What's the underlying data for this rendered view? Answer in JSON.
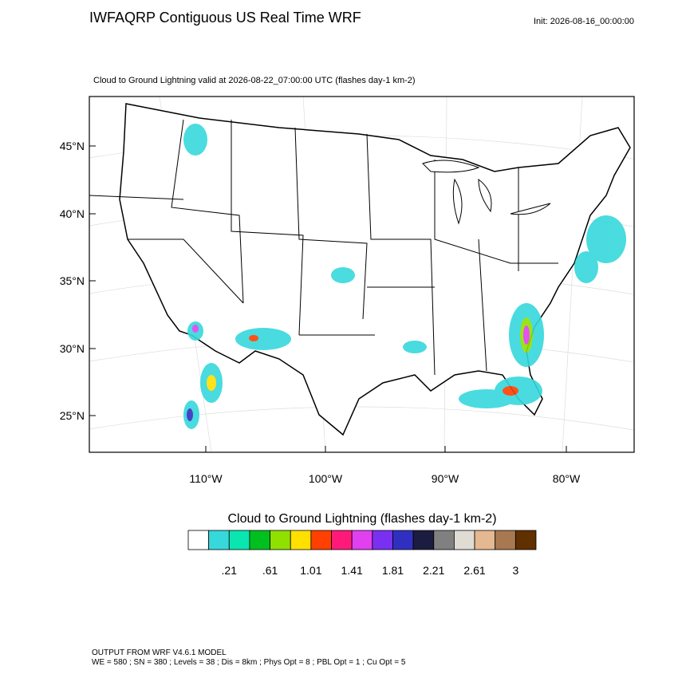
{
  "header": {
    "title": "IWFAQRP Contiguous US Real Time WRF",
    "init": "Init: 2026-08-16_00:00:00"
  },
  "map": {
    "subtitle": "Cloud to Ground Lightning valid at 2026-08-22_07:00:00 UTC   (flashes day-1 km-2)",
    "lat_labels": [
      "45°N",
      "40°N",
      "35°N",
      "30°N",
      "25°N"
    ],
    "lon_labels": [
      "110°W",
      "100°W",
      "90°W",
      "80°W"
    ]
  },
  "colorbar": {
    "title": "Cloud to Ground Lightning  (flashes day-1 km-2)",
    "colors": [
      "#ffffff",
      "#36d8dc",
      "#0ae6b0",
      "#00c020",
      "#90e000",
      "#ffe000",
      "#ff4000",
      "#ff1a7a",
      "#e040f0",
      "#7a30f0",
      "#3030c0",
      "#1c1c40",
      "#808080",
      "#e0dcd4",
      "#e4b890",
      "#a87850",
      "#603000"
    ],
    "labels": [
      ".21",
      ".61",
      "1.01",
      "1.41",
      "1.81",
      "2.21",
      "2.61",
      "3"
    ]
  },
  "footer": {
    "line1": "OUTPUT FROM WRF V4.6.1 MODEL",
    "line2": "WE = 580 ; SN = 380 ; Levels = 38 ; Dis = 8km ; Phys Opt = 8 ; PBL Opt = 1 ; Cu Opt = 5"
  }
}
